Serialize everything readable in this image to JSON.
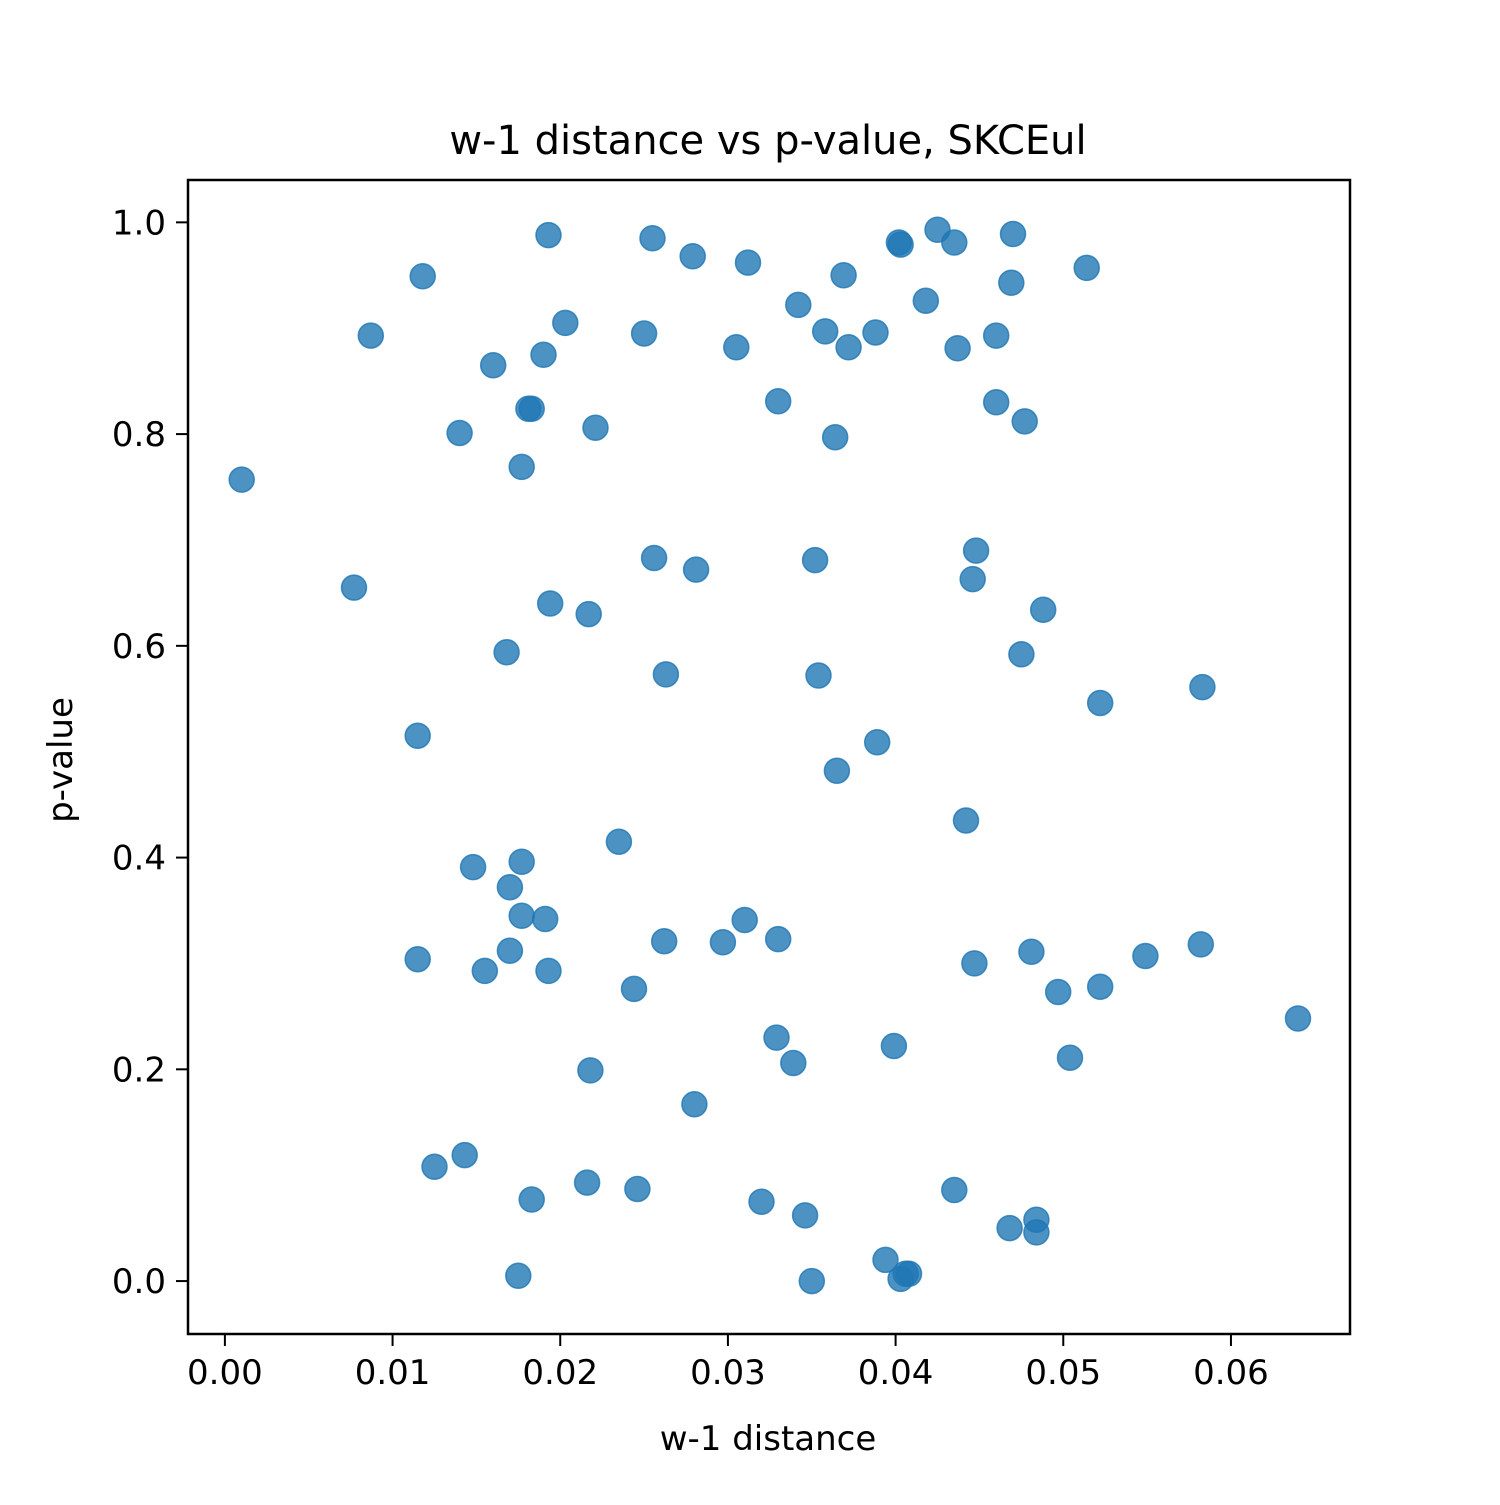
{
  "chart_data": {
    "type": "scatter",
    "title": "w-1 distance vs p-value, SKCEul",
    "xlabel": "w-1 distance",
    "ylabel": "p-value",
    "xlim": [
      -0.0022,
      0.0671
    ],
    "ylim": [
      -0.05,
      1.04
    ],
    "xticks": [
      0.0,
      0.01,
      0.02,
      0.03,
      0.04,
      0.05,
      0.06
    ],
    "xtick_labels": [
      "0.00",
      "0.01",
      "0.02",
      "0.03",
      "0.04",
      "0.05",
      "0.06"
    ],
    "yticks": [
      0.0,
      0.2,
      0.4,
      0.6,
      0.8,
      1.0
    ],
    "ytick_labels": [
      "0.0",
      "0.2",
      "0.4",
      "0.6",
      "0.8",
      "1.0"
    ],
    "grid": false,
    "legend": "none",
    "marker_color": "#1f77b4",
    "marker_alpha": 0.8,
    "series": [
      {
        "points": [
          [
            0.001,
            0.757
          ],
          [
            0.0077,
            0.655
          ],
          [
            0.0087,
            0.893
          ],
          [
            0.0115,
            0.304
          ],
          [
            0.0115,
            0.515
          ],
          [
            0.0118,
            0.949
          ],
          [
            0.0125,
            0.108
          ],
          [
            0.014,
            0.801
          ],
          [
            0.0143,
            0.119
          ],
          [
            0.0148,
            0.391
          ],
          [
            0.0155,
            0.293
          ],
          [
            0.016,
            0.865
          ],
          [
            0.017,
            0.312
          ],
          [
            0.017,
            0.372
          ],
          [
            0.0168,
            0.594
          ],
          [
            0.0175,
            0.005
          ],
          [
            0.0177,
            0.345
          ],
          [
            0.0177,
            0.396
          ],
          [
            0.0177,
            0.769
          ],
          [
            0.0181,
            0.824
          ],
          [
            0.0183,
            0.824
          ],
          [
            0.0183,
            0.077
          ],
          [
            0.019,
            0.875
          ],
          [
            0.0191,
            0.342
          ],
          [
            0.0193,
            0.293
          ],
          [
            0.0193,
            0.988
          ],
          [
            0.0194,
            0.64
          ],
          [
            0.0203,
            0.905
          ],
          [
            0.0216,
            0.093
          ],
          [
            0.0217,
            0.63
          ],
          [
            0.0218,
            0.199
          ],
          [
            0.0221,
            0.806
          ],
          [
            0.0235,
            0.415
          ],
          [
            0.0244,
            0.276
          ],
          [
            0.0246,
            0.087
          ],
          [
            0.025,
            0.895
          ],
          [
            0.0255,
            0.985
          ],
          [
            0.0256,
            0.683
          ],
          [
            0.0262,
            0.321
          ],
          [
            0.0263,
            0.573
          ],
          [
            0.0279,
            0.968
          ],
          [
            0.028,
            0.167
          ],
          [
            0.0281,
            0.672
          ],
          [
            0.0297,
            0.32
          ],
          [
            0.0305,
            0.882
          ],
          [
            0.031,
            0.341
          ],
          [
            0.0312,
            0.962
          ],
          [
            0.032,
            0.075
          ],
          [
            0.0329,
            0.23
          ],
          [
            0.033,
            0.323
          ],
          [
            0.033,
            0.831
          ],
          [
            0.0339,
            0.206
          ],
          [
            0.0342,
            0.922
          ],
          [
            0.0346,
            0.062
          ],
          [
            0.035,
            0.0
          ],
          [
            0.0352,
            0.681
          ],
          [
            0.0354,
            0.572
          ],
          [
            0.0358,
            0.897
          ],
          [
            0.0364,
            0.797
          ],
          [
            0.0365,
            0.482
          ],
          [
            0.0369,
            0.95
          ],
          [
            0.0372,
            0.882
          ],
          [
            0.0388,
            0.896
          ],
          [
            0.0389,
            0.509
          ],
          [
            0.0394,
            0.02
          ],
          [
            0.0399,
            0.222
          ],
          [
            0.0402,
            0.981
          ],
          [
            0.0403,
            0.979
          ],
          [
            0.0403,
            0.002
          ],
          [
            0.0406,
            0.007
          ],
          [
            0.0408,
            0.007
          ],
          [
            0.0418,
            0.926
          ],
          [
            0.0425,
            0.993
          ],
          [
            0.0435,
            0.981
          ],
          [
            0.0435,
            0.086
          ],
          [
            0.0437,
            0.881
          ],
          [
            0.0442,
            0.435
          ],
          [
            0.0446,
            0.663
          ],
          [
            0.0447,
            0.3
          ],
          [
            0.0448,
            0.69
          ],
          [
            0.046,
            0.893
          ],
          [
            0.046,
            0.83
          ],
          [
            0.0468,
            0.05
          ],
          [
            0.0469,
            0.943
          ],
          [
            0.047,
            0.989
          ],
          [
            0.0475,
            0.592
          ],
          [
            0.0477,
            0.812
          ],
          [
            0.0481,
            0.311
          ],
          [
            0.0484,
            0.058
          ],
          [
            0.0484,
            0.046
          ],
          [
            0.0488,
            0.634
          ],
          [
            0.0497,
            0.273
          ],
          [
            0.0504,
            0.211
          ],
          [
            0.0514,
            0.957
          ],
          [
            0.0522,
            0.278
          ],
          [
            0.0522,
            0.546
          ],
          [
            0.0549,
            0.307
          ],
          [
            0.0582,
            0.318
          ],
          [
            0.0583,
            0.561
          ],
          [
            0.064,
            0.248
          ]
        ]
      }
    ]
  }
}
